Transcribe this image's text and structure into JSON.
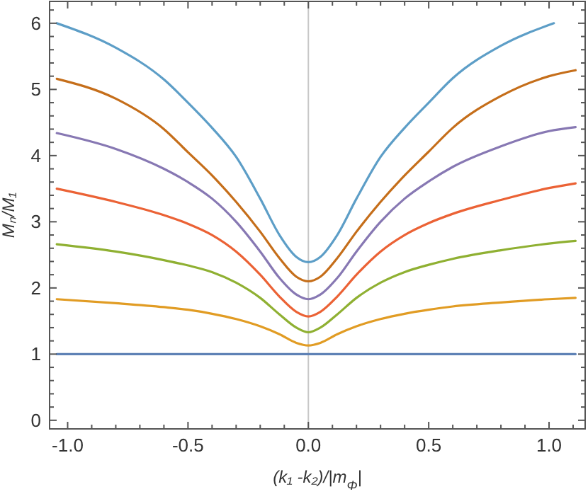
{
  "chart_data": {
    "type": "line",
    "xlabel": "(k₁ -k₂)/|m$_{Φ}$|",
    "ylabel": "Mₙ/M₁",
    "xlim": [
      -1.075,
      1.15
    ],
    "ylim": [
      -0.13,
      6.33
    ],
    "xticks": [
      {
        "value": -1.0,
        "label": "-1.0"
      },
      {
        "value": -0.9,
        "label": null
      },
      {
        "value": -0.8,
        "label": null
      },
      {
        "value": -0.7,
        "label": null
      },
      {
        "value": -0.6,
        "label": null
      },
      {
        "value": -0.5,
        "label": "-0.5"
      },
      {
        "value": -0.4,
        "label": null
      },
      {
        "value": -0.3,
        "label": null
      },
      {
        "value": -0.2,
        "label": null
      },
      {
        "value": -0.1,
        "label": null
      },
      {
        "value": 0,
        "label": "0.0"
      },
      {
        "value": 0.1,
        "label": null
      },
      {
        "value": 0.2,
        "label": null
      },
      {
        "value": 0.3,
        "label": null
      },
      {
        "value": 0.4,
        "label": null
      },
      {
        "value": 0.5,
        "label": "0.5"
      },
      {
        "value": 0.6,
        "label": null
      },
      {
        "value": 0.7,
        "label": null
      },
      {
        "value": 0.8,
        "label": null
      },
      {
        "value": 0.9,
        "label": null
      },
      {
        "value": 1.0,
        "label": "1.0"
      },
      {
        "value": 1.1,
        "label": null
      }
    ],
    "yticks": [
      0,
      {
        "value": 0.2,
        "label": null
      },
      {
        "value": 0.4,
        "label": null
      },
      {
        "value": 0.6,
        "label": null
      },
      {
        "value": 0.8,
        "label": null
      },
      1,
      {
        "value": 1.2,
        "label": null
      },
      {
        "value": 1.4,
        "label": null
      },
      {
        "value": 1.6,
        "label": null
      },
      {
        "value": 1.8,
        "label": null
      },
      2,
      {
        "value": 2.2,
        "label": null
      },
      {
        "value": 2.4,
        "label": null
      },
      {
        "value": 2.6,
        "label": null
      },
      {
        "value": 2.8,
        "label": null
      },
      3,
      {
        "value": 3.2,
        "label": null
      },
      {
        "value": 3.4,
        "label": null
      },
      {
        "value": 3.6,
        "label": null
      },
      {
        "value": 3.8,
        "label": null
      },
      4,
      {
        "value": 4.2,
        "label": null
      },
      {
        "value": 4.4,
        "label": null
      },
      {
        "value": 4.6,
        "label": null
      },
      {
        "value": 4.8,
        "label": null
      },
      5,
      {
        "value": 5.2,
        "label": null
      },
      {
        "value": 5.4,
        "label": null
      },
      {
        "value": 5.6,
        "label": null
      },
      {
        "value": 5.8,
        "label": null
      },
      6,
      {
        "value": 6.2,
        "label": null
      }
    ],
    "grid": false,
    "marker": "none",
    "line_style": "solid",
    "ref_lines": [
      {
        "axis": "x",
        "value": 0,
        "color": "#c8c8c8"
      }
    ],
    "series": [
      {
        "color": "#5e81b5",
        "x": [
          -1.045,
          1.11
        ],
        "values": [
          1,
          1
        ]
      },
      {
        "color": "#e19c24",
        "x": [
          -1.045,
          -0.8,
          -0.6,
          -0.5,
          -0.4,
          -0.3,
          -0.2,
          -0.12,
          -0.05,
          0,
          0.05,
          0.12,
          0.2,
          0.3,
          0.4,
          0.5,
          0.6,
          0.8,
          1.0,
          1.11
        ],
        "values": [
          1.83,
          1.77,
          1.71,
          1.67,
          1.61,
          1.53,
          1.42,
          1.3,
          1.17,
          1.13,
          1.17,
          1.3,
          1.42,
          1.53,
          1.61,
          1.67,
          1.72,
          1.78,
          1.83,
          1.85
        ]
      },
      {
        "color": "#8fb032",
        "x": [
          -1.045,
          -0.8,
          -0.6,
          -0.5,
          -0.4,
          -0.3,
          -0.2,
          -0.12,
          -0.05,
          0,
          0.05,
          0.12,
          0.2,
          0.3,
          0.4,
          0.5,
          0.6,
          0.8,
          1.0,
          1.11
        ],
        "values": [
          2.66,
          2.55,
          2.42,
          2.34,
          2.24,
          2.08,
          1.85,
          1.6,
          1.4,
          1.33,
          1.4,
          1.6,
          1.85,
          2.08,
          2.24,
          2.35,
          2.44,
          2.57,
          2.67,
          2.71
        ]
      },
      {
        "color": "#eb6235",
        "x": [
          -1.045,
          -0.8,
          -0.6,
          -0.5,
          -0.4,
          -0.3,
          -0.2,
          -0.12,
          -0.05,
          0,
          0.05,
          0.12,
          0.2,
          0.3,
          0.4,
          0.5,
          0.6,
          0.8,
          1.0,
          1.11
        ],
        "values": [
          3.5,
          3.3,
          3.1,
          2.97,
          2.8,
          2.55,
          2.2,
          1.87,
          1.64,
          1.57,
          1.64,
          1.87,
          2.2,
          2.55,
          2.8,
          2.98,
          3.12,
          3.33,
          3.51,
          3.58
        ]
      },
      {
        "color": "#8778b3",
        "x": [
          -1.045,
          -0.8,
          -0.6,
          -0.5,
          -0.4,
          -0.3,
          -0.2,
          -0.12,
          -0.05,
          0,
          0.05,
          0.12,
          0.2,
          0.3,
          0.4,
          0.5,
          0.6,
          0.8,
          1.0,
          1.11
        ],
        "values": [
          4.34,
          4.1,
          3.8,
          3.6,
          3.35,
          3.0,
          2.55,
          2.15,
          1.9,
          1.83,
          1.9,
          2.15,
          2.55,
          3.0,
          3.35,
          3.61,
          3.83,
          4.14,
          4.37,
          4.43
        ]
      },
      {
        "color": "#c56e1a",
        "x": [
          -1.045,
          -0.8,
          -0.6,
          -0.5,
          -0.4,
          -0.3,
          -0.2,
          -0.12,
          -0.05,
          0,
          0.05,
          0.12,
          0.2,
          0.3,
          0.4,
          0.5,
          0.6,
          0.8,
          1.0,
          1.11
        ],
        "values": [
          5.16,
          4.86,
          4.4,
          4.05,
          3.7,
          3.3,
          2.85,
          2.45,
          2.17,
          2.1,
          2.17,
          2.45,
          2.85,
          3.3,
          3.7,
          4.06,
          4.42,
          4.9,
          5.2,
          5.29
        ]
      },
      {
        "color": "#5d9ec7",
        "x": [
          -1.045,
          -0.8,
          -0.6,
          -0.5,
          -0.4,
          -0.3,
          -0.2,
          -0.12,
          -0.05,
          0,
          0.05,
          0.12,
          0.2,
          0.3,
          0.4,
          0.5,
          0.6,
          0.8,
          1.02
        ],
        "values": [
          6.0,
          5.63,
          5.15,
          4.8,
          4.42,
          3.98,
          3.35,
          2.8,
          2.47,
          2.39,
          2.47,
          2.8,
          3.35,
          3.98,
          4.42,
          4.8,
          5.17,
          5.66,
          6.0
        ]
      }
    ]
  }
}
